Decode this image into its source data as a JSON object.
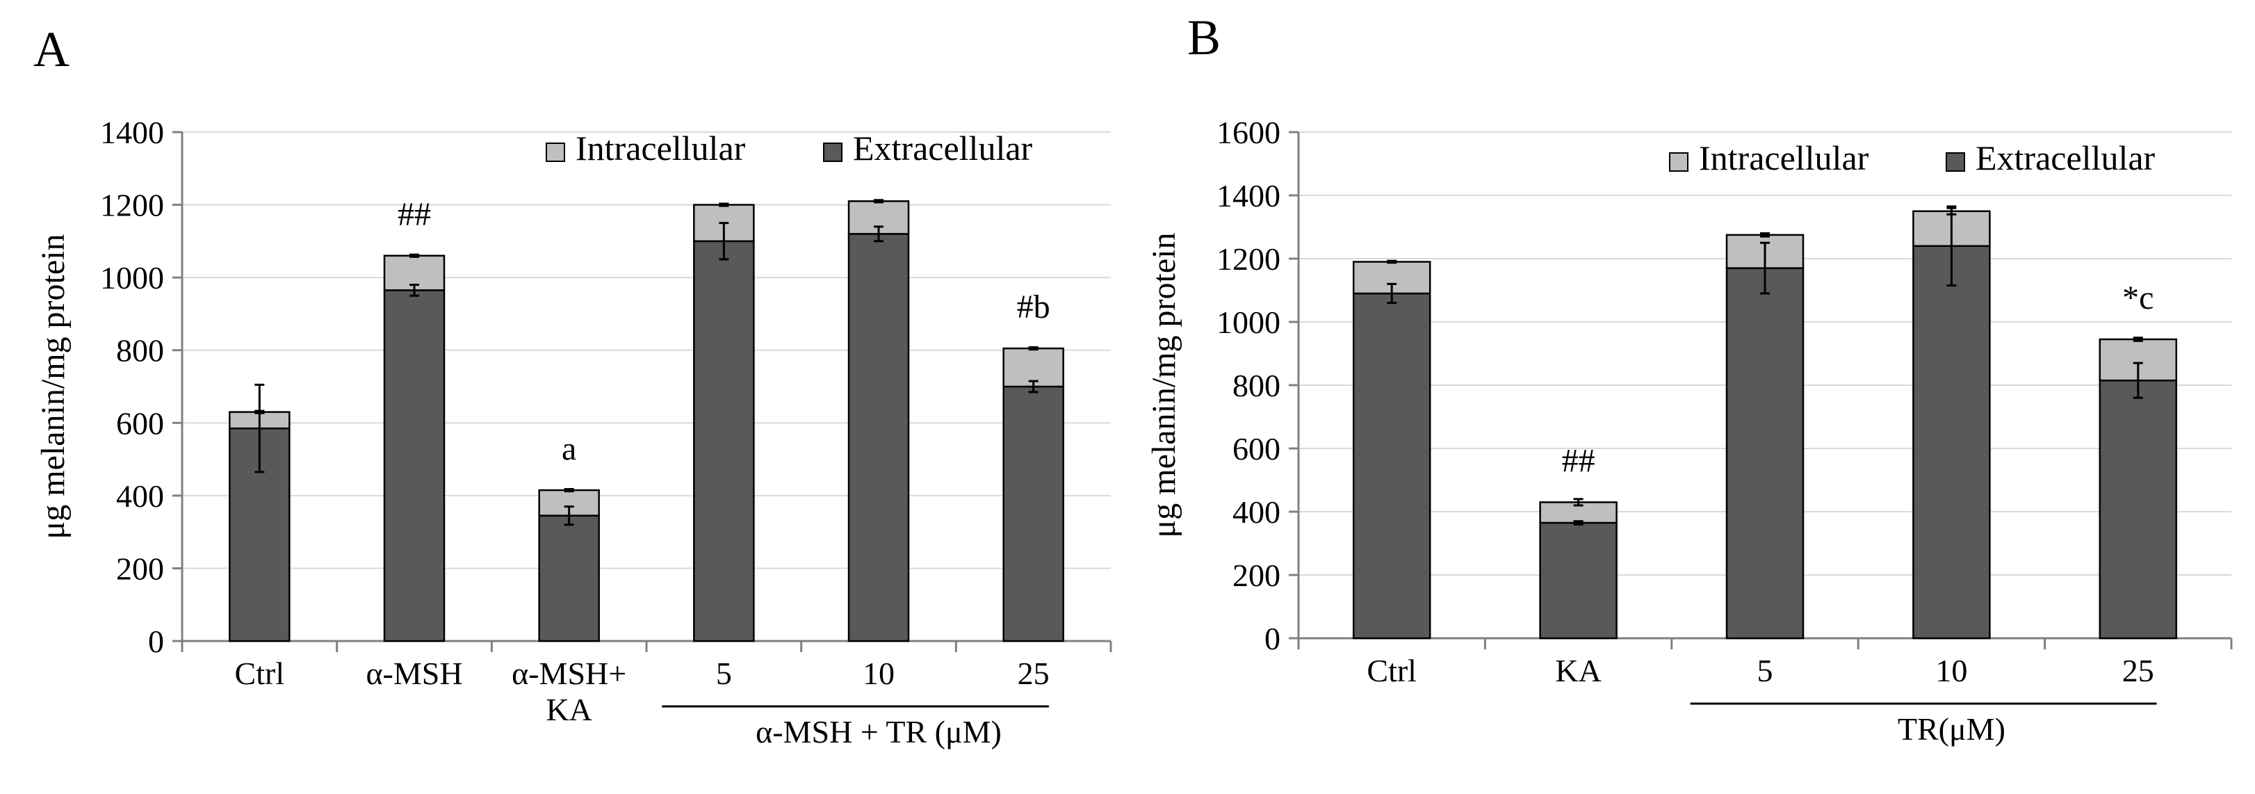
{
  "colors": {
    "intracellular": "#bfbfbf",
    "extracellular": "#595959",
    "grid": "#d9d9d9",
    "axis": "#808080"
  },
  "chart_data": [
    {
      "panel": "A",
      "type": "bar",
      "stacked": true,
      "ylabel": "μg melanin/mg  protein",
      "ylim": [
        0,
        1400
      ],
      "yticks": [
        0,
        200,
        400,
        600,
        800,
        1000,
        1200,
        1400
      ],
      "grid": true,
      "legend": {
        "position": "top-right",
        "entries": [
          "Intracellular",
          "Extracellular"
        ]
      },
      "categories": [
        {
          "lines": [
            "Ctrl"
          ]
        },
        {
          "lines": [
            "α-MSH"
          ]
        },
        {
          "lines": [
            "α-MSH+",
            "KA"
          ]
        },
        {
          "lines": [
            "5"
          ]
        },
        {
          "lines": [
            "10"
          ]
        },
        {
          "lines": [
            "25"
          ]
        }
      ],
      "group_label": {
        "text": "α-MSH + TR (μM)",
        "from": 3,
        "to": 5
      },
      "series": [
        {
          "name": "Extracellular",
          "values": [
            585,
            965,
            345,
            1100,
            1120,
            700
          ],
          "errors": [
            120,
            15,
            25,
            50,
            20,
            15
          ]
        },
        {
          "name": "Intracellular",
          "values": [
            45,
            95,
            70,
            100,
            90,
            105
          ],
          "errors": [
            3,
            3,
            3,
            3,
            3,
            3
          ]
        }
      ],
      "annotations": [
        "",
        "##",
        "a",
        "",
        "",
        "#b"
      ]
    },
    {
      "panel": "B",
      "type": "bar",
      "stacked": true,
      "ylabel": "μg melanin/mg  protein",
      "ylim": [
        0,
        1600
      ],
      "yticks": [
        0,
        200,
        400,
        600,
        800,
        1000,
        1200,
        1400,
        1600
      ],
      "grid": true,
      "legend": {
        "position": "top-right",
        "entries": [
          "Intracellular",
          "Extracellular"
        ]
      },
      "categories": [
        {
          "lines": [
            "Ctrl"
          ]
        },
        {
          "lines": [
            "KA"
          ]
        },
        {
          "lines": [
            "5"
          ]
        },
        {
          "lines": [
            "10"
          ]
        },
        {
          "lines": [
            "25"
          ]
        }
      ],
      "group_label": {
        "text": "TR(μM)",
        "from": 2,
        "to": 4
      },
      "series": [
        {
          "name": "Extracellular",
          "values": [
            1090,
            365,
            1170,
            1240,
            815
          ],
          "errors": [
            30,
            5,
            80,
            125,
            55
          ]
        },
        {
          "name": "Intracellular",
          "values": [
            100,
            65,
            105,
            110,
            130
          ],
          "errors": [
            3,
            10,
            5,
            10,
            5
          ]
        }
      ],
      "annotations": [
        "",
        "##",
        "",
        "",
        "*c"
      ]
    }
  ]
}
